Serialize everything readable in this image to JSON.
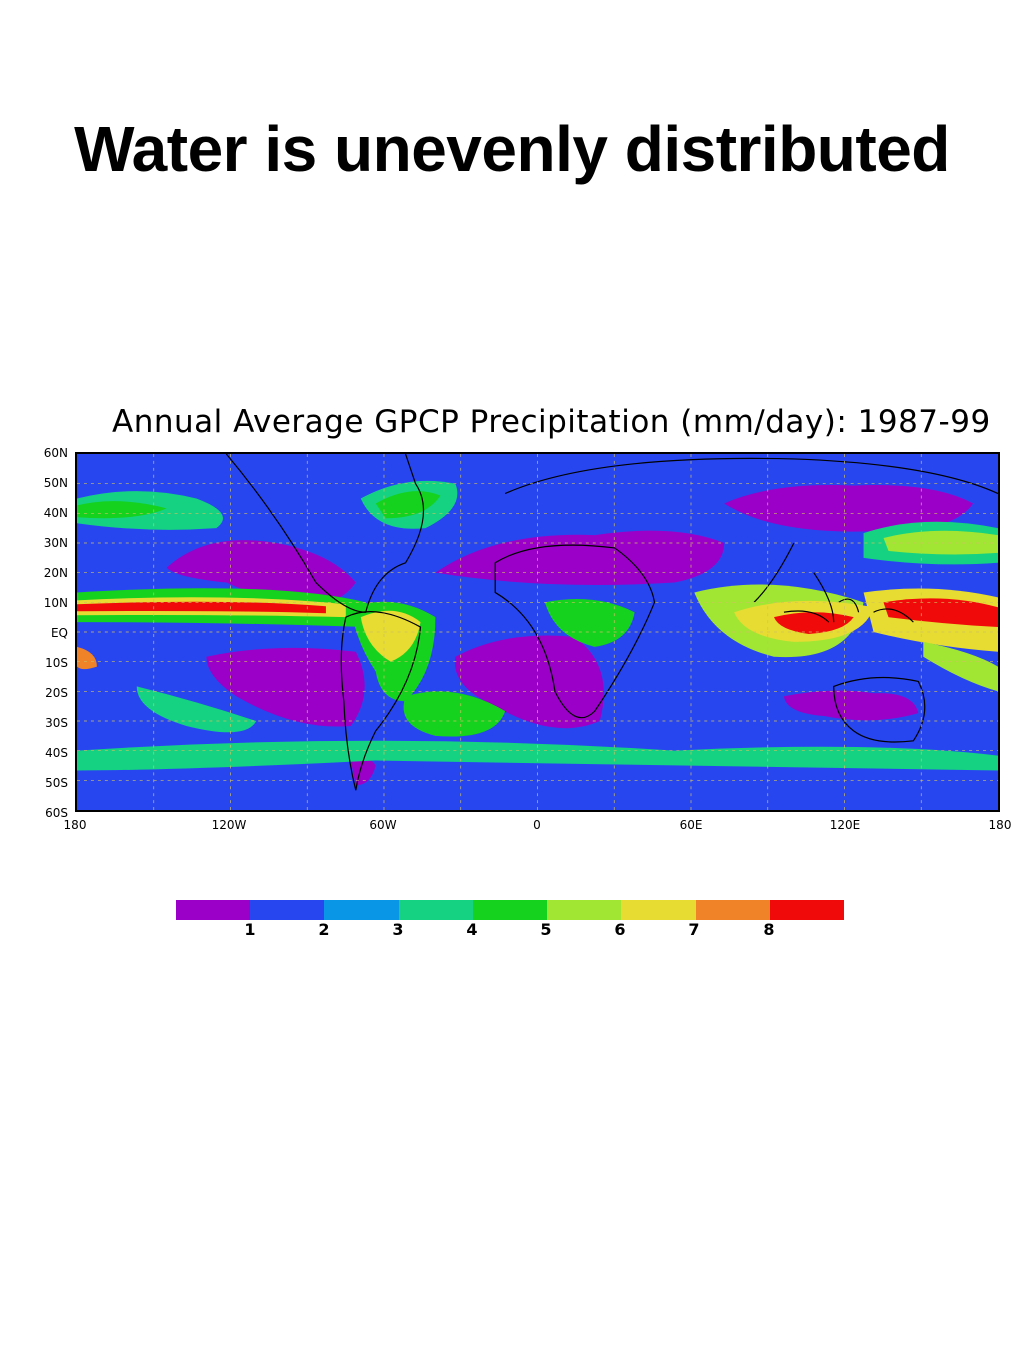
{
  "slide": {
    "title": "Water is unevenly distributed"
  },
  "map": {
    "title": "Annual Average GPCP Precipitation (mm/day): 1987-99",
    "lat_ticks": [
      "60N",
      "50N",
      "40N",
      "30N",
      "20N",
      "10N",
      "EQ",
      "10S",
      "20S",
      "30S",
      "40S",
      "50S",
      "60S"
    ],
    "lon_ticks": [
      "180",
      "120W",
      "60W",
      "0",
      "60E",
      "120E",
      "180"
    ],
    "colors": {
      "lt1": "#9b00c8",
      "c1_2": "#2846f0",
      "c2_3": "#0a96e6",
      "c3_4": "#14d282",
      "c4_5": "#14d21e",
      "c5_6": "#a0e632",
      "c6_7": "#e6dc32",
      "c7_8": "#f08228",
      "gt8": "#f00a0a"
    }
  },
  "legend": {
    "colors": [
      "#9b00c8",
      "#2846f0",
      "#0a96e6",
      "#14d282",
      "#14d21e",
      "#a0e632",
      "#e6dc32",
      "#f08228",
      "#f00a0a"
    ],
    "labels": [
      "1",
      "2",
      "3",
      "4",
      "5",
      "6",
      "7",
      "8"
    ]
  }
}
